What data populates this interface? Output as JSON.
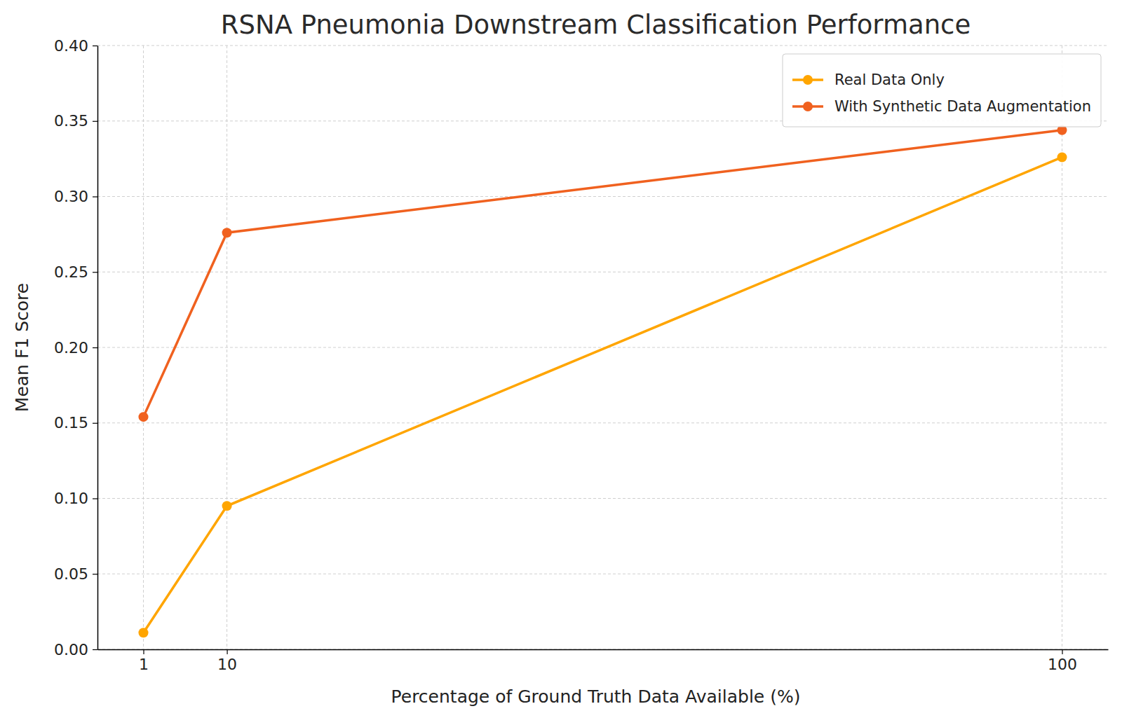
{
  "chart_data": {
    "type": "line",
    "title": "RSNA Pneumonia Downstream Classification Performance",
    "x_label": "Percentage of Ground Truth Data Available (%)",
    "y_label": "Mean F1 Score",
    "x": [
      1,
      10,
      100
    ],
    "series": [
      {
        "name": "Real Data Only",
        "color": "#ffa500",
        "values": [
          0.011,
          0.095,
          0.326
        ]
      },
      {
        "name": "With Synthetic Data Augmentation",
        "color": "#f0611f",
        "values": [
          0.154,
          0.276,
          0.344
        ]
      }
    ],
    "xlim": [
      -3.95,
      104.95
    ],
    "xticks": [
      1,
      10,
      100
    ],
    "ylim": [
      0,
      0.4
    ],
    "yticks": [
      {
        "value": 0,
        "label": "0.00"
      },
      {
        "value": 0.05,
        "label": "0.05"
      },
      {
        "value": 0.1,
        "label": "0.10"
      },
      {
        "value": 0.15,
        "label": "0.15"
      },
      {
        "value": 0.2,
        "label": "0.20"
      },
      {
        "value": 0.25,
        "label": "0.25"
      },
      {
        "value": 0.3,
        "label": "0.30"
      },
      {
        "value": 0.35,
        "label": "0.35"
      },
      {
        "value": 0.4,
        "label": "0.40"
      }
    ],
    "grid": true,
    "legend": "upper right",
    "marker": "circle",
    "line_style": "solid"
  }
}
